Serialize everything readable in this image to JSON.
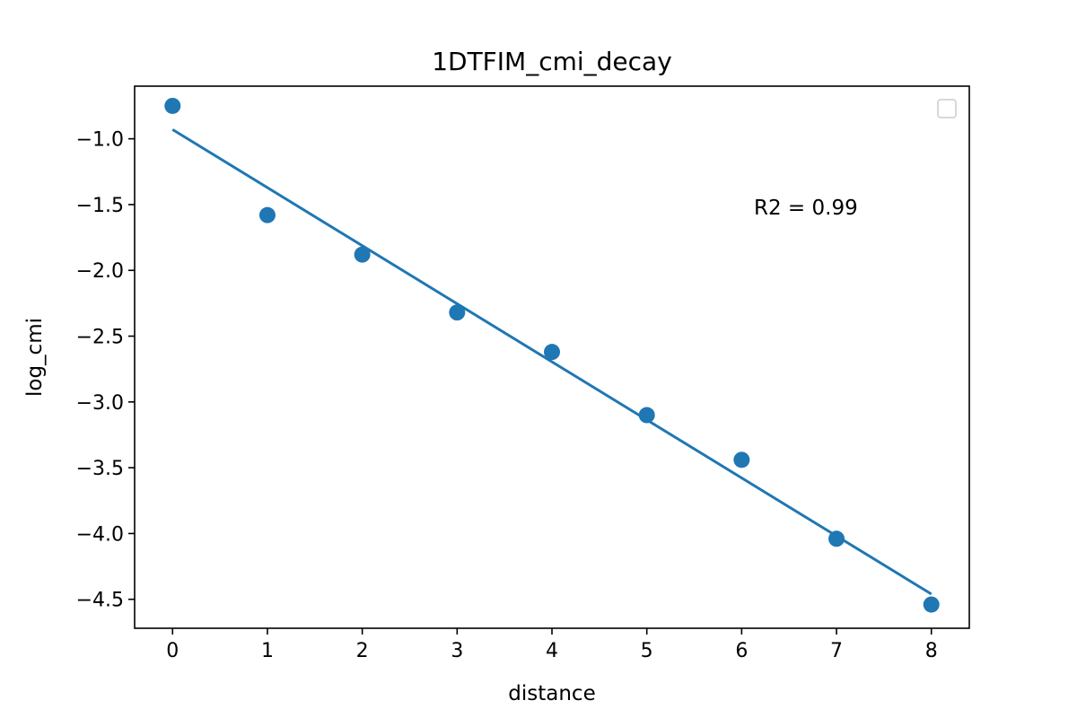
{
  "chart_data": {
    "type": "scatter",
    "title": "1DTFIM_cmi_decay",
    "xlabel": "distance",
    "ylabel": "log_cmi",
    "xlim": [
      -0.4,
      8.4
    ],
    "ylim": [
      -4.72,
      -0.6
    ],
    "xticks": [
      0,
      1,
      2,
      3,
      4,
      5,
      6,
      7,
      8
    ],
    "xtick_labels": [
      "0",
      "1",
      "2",
      "3",
      "4",
      "5",
      "6",
      "7",
      "8"
    ],
    "yticks": [
      -1.0,
      -1.5,
      -2.0,
      -2.5,
      -3.0,
      -3.5,
      -4.0,
      -4.5
    ],
    "ytick_labels": [
      "−1.0",
      "−1.5",
      "−2.0",
      "−2.5",
      "−3.0",
      "−3.5",
      "−4.0",
      "−4.5"
    ],
    "grid": false,
    "legend": "top-right (empty)",
    "color": "#1f77b4",
    "series": [
      {
        "kind": "scatter",
        "x": [
          0,
          1,
          2,
          3,
          4,
          5,
          6,
          7,
          8
        ],
        "y": [
          -0.75,
          -1.58,
          -1.88,
          -2.32,
          -2.62,
          -3.1,
          -3.44,
          -4.04,
          -4.54
        ]
      },
      {
        "kind": "line",
        "x": [
          0,
          8
        ],
        "y": [
          -0.93,
          -4.46
        ]
      }
    ],
    "annotation": "R2 = 0.99"
  }
}
